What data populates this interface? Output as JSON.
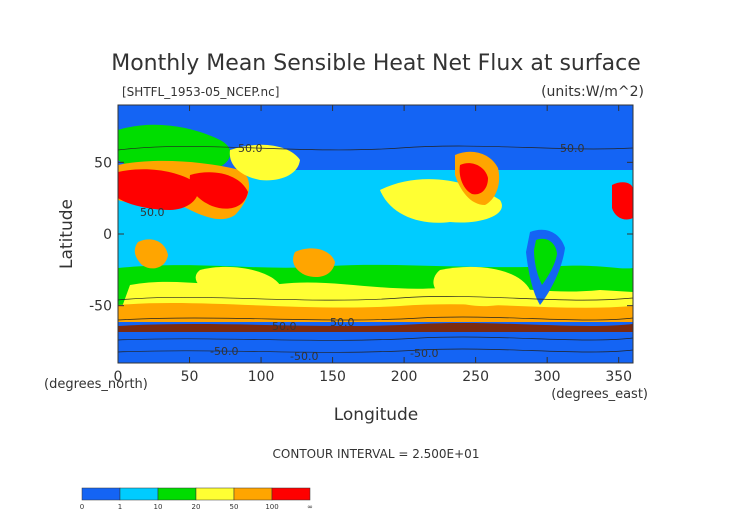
{
  "chart_data": {
    "type": "heatmap",
    "title": "Monthly Mean Sensible Heat Net Flux at surface",
    "file_label": "[SHTFL_1953-05_NCEP.nc]",
    "units_label": "(units:W/m^2)",
    "xlabel": "Longitude",
    "ylabel": "Latitude",
    "x_unit_label": "(degrees_east)",
    "y_unit_label": "(degrees_north)",
    "xlim": [
      0,
      360
    ],
    "ylim": [
      -90,
      90
    ],
    "x_ticks": [
      0,
      50,
      100,
      150,
      200,
      250,
      300,
      350
    ],
    "y_ticks": [
      50,
      0,
      -50
    ],
    "contour_interval_label": "CONTOUR INTERVAL = 2.500E+01",
    "contour_labels": [
      "50.0",
      "50.0",
      "50.0",
      "50.0",
      "50.0",
      "-50.0",
      "-50.0",
      "-50.0"
    ],
    "colorbar": {
      "tick_labels": [
        "0",
        "1",
        "10",
        "20",
        "50",
        "100",
        "∞"
      ],
      "colors": [
        "#1464f4",
        "#00ccff",
        "#00dd00",
        "#ffff33",
        "#ffa500",
        "#ff0000"
      ]
    }
  }
}
